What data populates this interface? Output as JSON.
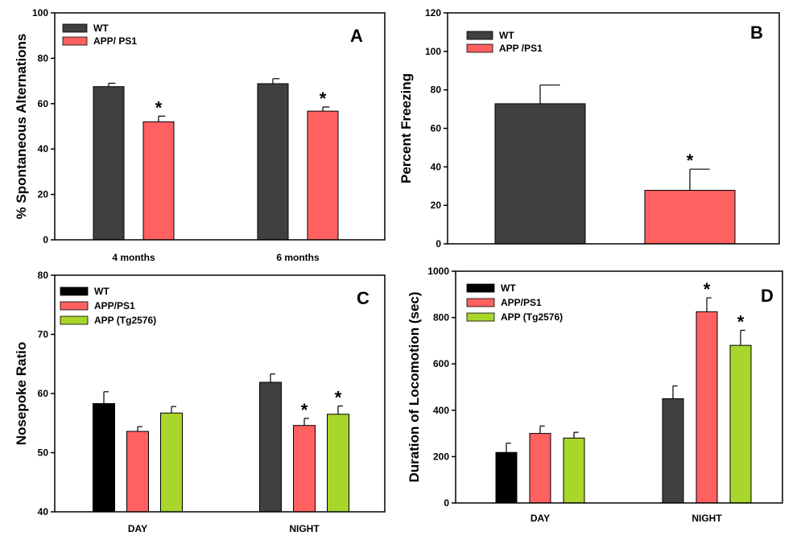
{
  "chart_data": [
    {
      "panel": "A",
      "type": "bar",
      "ylabel": "% Spontaneous Alternations",
      "xlabel": "",
      "ylim": [
        0,
        100
      ],
      "yticks": [
        0,
        20,
        40,
        60,
        80,
        100
      ],
      "categories": [
        "4 months",
        "6 months"
      ],
      "legend_position": "top-left",
      "series": [
        {
          "name": "WT",
          "color": "#404040",
          "values": [
            67.5,
            68.8
          ],
          "errors": [
            1.5,
            2.2
          ],
          "significant": [
            false,
            false
          ]
        },
        {
          "name": "APP/ PS1",
          "color": "#FF6060",
          "values": [
            52.0,
            56.7
          ],
          "errors": [
            2.5,
            1.8
          ],
          "significant": [
            true,
            true
          ]
        }
      ]
    },
    {
      "panel": "B",
      "type": "bar",
      "ylabel": "Percent Freezing",
      "xlabel": "",
      "ylim": [
        0,
        120
      ],
      "yticks": [
        0,
        20,
        40,
        60,
        80,
        100,
        120
      ],
      "categories": [
        ""
      ],
      "legend_position": "top-left",
      "series": [
        {
          "name": "WT",
          "color": "#404040",
          "values": [
            72.8
          ],
          "errors": [
            9.7
          ],
          "significant": [
            false
          ]
        },
        {
          "name": "APP /PS1",
          "color": "#FF6060",
          "values": [
            27.8
          ],
          "errors": [
            11.0
          ],
          "significant": [
            true
          ]
        }
      ]
    },
    {
      "panel": "C",
      "type": "bar",
      "ylabel": "Nosepoke Ratio",
      "xlabel": "",
      "ylim": [
        40,
        80
      ],
      "yticks": [
        40,
        50,
        60,
        70,
        80
      ],
      "categories": [
        "DAY",
        "NIGHT"
      ],
      "legend_position": "top-left",
      "series": [
        {
          "name": "WT",
          "color": "#000000",
          "colors": [
            "#000000",
            "#404040"
          ],
          "values": [
            58.3,
            61.9
          ],
          "errors": [
            2.0,
            1.4
          ],
          "significant": [
            false,
            false
          ]
        },
        {
          "name": "APP/PS1",
          "color": "#FF6060",
          "values": [
            53.6,
            54.6
          ],
          "errors": [
            0.8,
            1.2
          ],
          "significant": [
            false,
            true
          ]
        },
        {
          "name": "APP (Tg2576)",
          "color": "#A8D62A",
          "values": [
            56.7,
            56.5
          ],
          "errors": [
            1.1,
            1.4
          ],
          "significant": [
            false,
            true
          ]
        }
      ]
    },
    {
      "panel": "D",
      "type": "bar",
      "ylabel": "Duration of Locomotion (sec)",
      "xlabel": "",
      "ylim": [
        0,
        1000
      ],
      "yticks": [
        0,
        200,
        400,
        600,
        800,
        1000
      ],
      "categories": [
        "DAY",
        "NIGHT"
      ],
      "legend_position": "top-left",
      "series": [
        {
          "name": "WT",
          "color": "#000000",
          "colors": [
            "#000000",
            "#404040"
          ],
          "values": [
            218,
            450
          ],
          "errors": [
            40,
            55
          ],
          "significant": [
            false,
            false
          ]
        },
        {
          "name": "APP/PS1",
          "color": "#FF6060",
          "values": [
            300,
            825
          ],
          "errors": [
            32,
            60
          ],
          "significant": [
            false,
            true
          ]
        },
        {
          "name": "APP (Tg2576)",
          "color": "#A8D62A",
          "values": [
            280,
            680
          ],
          "errors": [
            25,
            65
          ],
          "significant": [
            false,
            true
          ]
        }
      ]
    }
  ]
}
